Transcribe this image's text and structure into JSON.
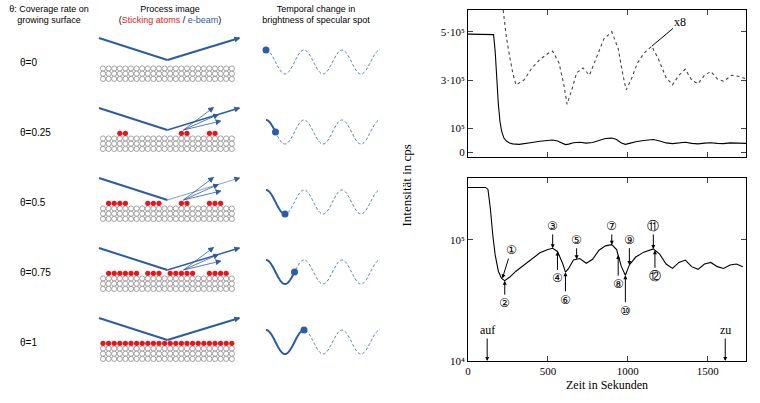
{
  "diagram": {
    "headers": [
      "θ: Coverage rate on growing surface",
      "Process image",
      "Temporal change in brightness of specular spot"
    ],
    "process_legend": [
      {
        "text": "("
      },
      {
        "text": "Sticking atoms",
        "color": "#e8141b"
      },
      {
        "text": " / "
      },
      {
        "text": "e-beam",
        "color": "#2a5da8"
      },
      {
        "text": ")"
      }
    ],
    "rows": [
      {
        "label": "θ=0",
        "theta": 0
      },
      {
        "label": "θ=0.25",
        "theta": 0.25
      },
      {
        "label": "θ=0.5",
        "theta": 0.5
      },
      {
        "label": "θ=0.75",
        "theta": 0.75
      },
      {
        "label": "θ=1",
        "theta": 1
      }
    ]
  },
  "chart_data": [
    {
      "type": "line",
      "xlim": [
        0,
        1740
      ],
      "xticks": [
        0,
        500,
        1000,
        1500
      ],
      "ylim": [
        -20000,
        590000
      ],
      "yticks": [
        0,
        {
          "value": 100000,
          "label": "10⁵"
        },
        {
          "value": 300000,
          "label": "3·10⁵"
        },
        {
          "value": 500000,
          "label": "5·10⁵"
        }
      ],
      "tick_labels": "y",
      "grid": false,
      "series": [
        {
          "color": "#000000",
          "line_style": "solid",
          "x": [
            0,
            80,
            160,
            170,
            180,
            190,
            200,
            210,
            225,
            240,
            260,
            280,
            320,
            360,
            400,
            450,
            500,
            530,
            560,
            590,
            610,
            630,
            660,
            700,
            740,
            780,
            820,
            860,
            900,
            930,
            960,
            985,
            1010,
            1050,
            1100,
            1160,
            1200,
            1240,
            1280,
            1320,
            1360,
            1400,
            1440,
            1480,
            1520,
            1560,
            1600,
            1640,
            1680,
            1740
          ],
          "values": [
            490000,
            490000,
            488000,
            420000,
            300000,
            200000,
            130000,
            90000,
            60000,
            48000,
            40000,
            36000,
            34000,
            37000,
            42000,
            47000,
            51000,
            52000,
            48000,
            40000,
            33000,
            35000,
            41000,
            43000,
            39000,
            42000,
            51000,
            58000,
            60000,
            54000,
            40000,
            34000,
            38000,
            45000,
            50000,
            54000,
            48000,
            40000,
            37000,
            41000,
            43000,
            38000,
            36000,
            39000,
            41000,
            38000,
            37000,
            40000,
            40000,
            38000
          ]
        },
        {
          "color": "#444444",
          "line_style": "dotted",
          "x": [
            220,
            240,
            260,
            280,
            300,
            350,
            400,
            450,
            500,
            530,
            570,
            600,
            620,
            650,
            680,
            720,
            760,
            800,
            850,
            900,
            940,
            970,
            990,
            1020,
            1060,
            1100,
            1150,
            1190,
            1240,
            1280,
            1320,
            1360,
            1400,
            1440,
            1480,
            1520,
            1560,
            1600,
            1650,
            1700,
            1740
          ],
          "values": [
            590000,
            480000,
            400000,
            330000,
            280000,
            300000,
            350000,
            385000,
            410000,
            420000,
            370000,
            280000,
            200000,
            260000,
            330000,
            350000,
            320000,
            390000,
            470000,
            500000,
            430000,
            320000,
            260000,
            300000,
            370000,
            410000,
            440000,
            390000,
            310000,
            280000,
            320000,
            345000,
            300000,
            285000,
            320000,
            335000,
            305000,
            295000,
            320000,
            315000,
            305000
          ]
        }
      ],
      "annotations": [
        {
          "text": "x8",
          "x": 1150,
          "y": 440000,
          "text_x": 1330,
          "text_y": 540000
        }
      ]
    },
    {
      "type": "line",
      "xlabel": "Zeit in Sekunden",
      "ylabel": "Intensität in cps",
      "log": "y",
      "xlim": [
        0,
        1740
      ],
      "xticks": [
        0,
        500,
        1000,
        1500
      ],
      "ylim": [
        10000,
        320000
      ],
      "yticks": [
        {
          "value": 10000,
          "label": "10⁴"
        },
        {
          "value": 100000,
          "label": "10⁵"
        }
      ],
      "grid": false,
      "series": [
        {
          "color": "#000000",
          "line_style": "solid",
          "x": [
            0,
            110,
            125,
            140,
            155,
            170,
            190,
            210,
            230,
            260,
            300,
            350,
            400,
            450,
            500,
            530,
            560,
            590,
            610,
            630,
            660,
            700,
            740,
            780,
            820,
            860,
            900,
            930,
            960,
            985,
            1010,
            1050,
            1100,
            1160,
            1200,
            1240,
            1280,
            1320,
            1360,
            1400,
            1440,
            1480,
            1520,
            1560,
            1600,
            1640,
            1680,
            1720
          ],
          "values": [
            270000,
            270000,
            260000,
            180000,
            110000,
            75000,
            55000,
            48000,
            46000,
            49000,
            55000,
            62000,
            70000,
            78000,
            83000,
            85000,
            80000,
            65000,
            54000,
            58000,
            68000,
            70000,
            64000,
            69000,
            82000,
            89000,
            91000,
            83000,
            60000,
            51000,
            62000,
            72000,
            79000,
            84000,
            76000,
            63000,
            58000,
            65000,
            68000,
            60000,
            57000,
            63000,
            65000,
            60000,
            58000,
            62000,
            63000,
            60000
          ]
        }
      ],
      "annotations": [
        {
          "text": "①",
          "x": 215,
          "y": 48000,
          "text_x": 270,
          "text_y": 82000
        },
        {
          "text": "②",
          "x": 230,
          "y": 46000,
          "text_x": 230,
          "text_y": 30000
        },
        {
          "text": "③",
          "x": 530,
          "y": 85000,
          "text_x": 530,
          "text_y": 130000
        },
        {
          "text": "④",
          "x": 560,
          "y": 80000,
          "text_x": 560,
          "text_y": 48000
        },
        {
          "text": "⑤",
          "x": 680,
          "y": 69000,
          "text_x": 680,
          "text_y": 100000
        },
        {
          "text": "⑥",
          "x": 610,
          "y": 54000,
          "text_x": 610,
          "text_y": 32000
        },
        {
          "text": "⑦",
          "x": 900,
          "y": 91000,
          "text_x": 900,
          "text_y": 130000
        },
        {
          "text": "⑧",
          "x": 940,
          "y": 75000,
          "text_x": 940,
          "text_y": 43000
        },
        {
          "text": "⑨",
          "x": 1010,
          "y": 62000,
          "text_x": 1010,
          "text_y": 100000
        },
        {
          "text": "⑩",
          "x": 985,
          "y": 51000,
          "text_x": 985,
          "text_y": 26000
        },
        {
          "text": "⑪",
          "x": 1160,
          "y": 84000,
          "text_x": 1160,
          "text_y": 130000
        },
        {
          "text": "⑫",
          "x": 1170,
          "y": 82000,
          "text_x": 1170,
          "text_y": 50000
        },
        {
          "text": "auf",
          "x": 120,
          "y": 10000,
          "text_x": 120,
          "text_y": 18000
        },
        {
          "text": "zu",
          "x": 1610,
          "y": 10000,
          "text_x": 1610,
          "text_y": 18000
        }
      ]
    }
  ]
}
